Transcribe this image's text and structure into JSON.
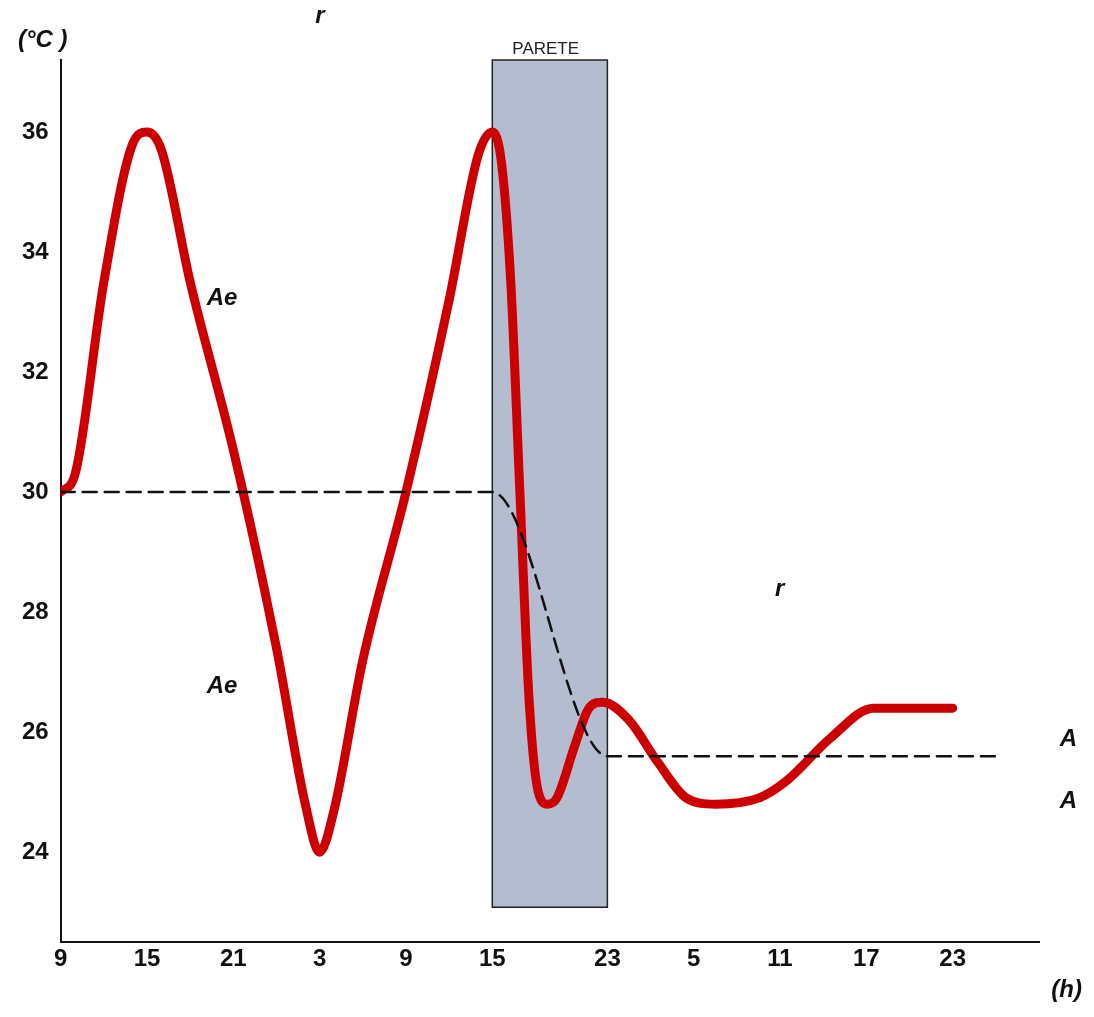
{
  "chart_data": {
    "type": "line",
    "xlabel": "(h)",
    "ylabel": "(°C )",
    "xlim": [
      "--01-01T09:00",
      "--01-04T05:00"
    ],
    "ylim": [
      22.5,
      37.2
    ],
    "xticks": [
      {
        "value": "--01-01T09:00",
        "label": "9"
      },
      {
        "value": "--01-01T15:00",
        "label": "15"
      },
      {
        "value": "--01-01T21:00",
        "label": "21"
      },
      {
        "value": "--01-02T03:00",
        "label": "3"
      },
      {
        "value": "--01-02T09:00",
        "label": "9"
      },
      {
        "value": "--01-02T15:00",
        "label": "15"
      },
      {
        "value": "--01-02T23:00",
        "label": "23"
      },
      {
        "value": "--01-03T05:00",
        "label": "5"
      },
      {
        "value": "--01-03T11:00",
        "label": "11"
      },
      {
        "value": "--01-03T17:00",
        "label": "17"
      },
      {
        "value": "--01-03T23:00",
        "label": "23"
      }
    ],
    "yticks": [
      24,
      26,
      28,
      30,
      32,
      34,
      36
    ],
    "grid": false,
    "legend": false,
    "marker": "none",
    "series": [
      {
        "color": "#cc0000",
        "line_style": "solid",
        "x": [
          "--01-01T09:00",
          "--01-01T10:00",
          "--01-01T12:00",
          "--01-01T14:00",
          "--01-01T15:00",
          "--01-01T16:00",
          "--01-01T18:00",
          "--01-01T21:00",
          "--01-02T00:00",
          "--01-02T02:00",
          "--01-02T03:00",
          "--01-02T04:00",
          "--01-02T06:00",
          "--01-02T09:00",
          "--01-02T12:00",
          "--01-02T14:00",
          "--01-02T15:00",
          "--01-02T15:38",
          "--01-02T16:17",
          "--01-02T16:55",
          "--01-02T17:34",
          "--01-02T18:12",
          "--01-02T18:50",
          "--01-02T19:29",
          "--01-02T20:46",
          "--01-02T21:43",
          "--01-02T22:41",
          "--01-03T00:30",
          "--01-03T02:30",
          "--01-03T04:30",
          "--01-03T06:30",
          "--01-03T09:30",
          "--01-03T11:30",
          "--01-03T14:30",
          "--01-03T17:30",
          "--01-03T20:30",
          "--01-03T23:00"
        ],
        "values": [
          30,
          30.3,
          33.5,
          35.8,
          36,
          35.7,
          33.5,
          30.7,
          27.4,
          24.8,
          24,
          24.7,
          27.2,
          30,
          33.2,
          35.6,
          36,
          35.5,
          33.5,
          30,
          26.5,
          25,
          24.8,
          24.9,
          25.8,
          26.4,
          26.5,
          26.2,
          25.5,
          24.9,
          24.8,
          24.9,
          25.2,
          25.9,
          26.4,
          26.4,
          26.4
        ]
      },
      {
        "color": "#111111",
        "line_style": "dashed",
        "x": [
          "--01-01T09:00",
          "--01-02T15:00",
          "--01-02T23:00",
          "--01-04T02:00"
        ],
        "values": [
          30,
          30,
          25.6,
          25.6
        ]
      }
    ],
    "bands": [
      {
        "axis": "x",
        "from": "--01-02T15:00",
        "to": "--01-02T23:00",
        "label": "PARETE",
        "color": "#b4bccf"
      }
    ],
    "annotations": [
      "r",
      "Ae",
      "Ae",
      "r",
      "A",
      "A"
    ]
  }
}
